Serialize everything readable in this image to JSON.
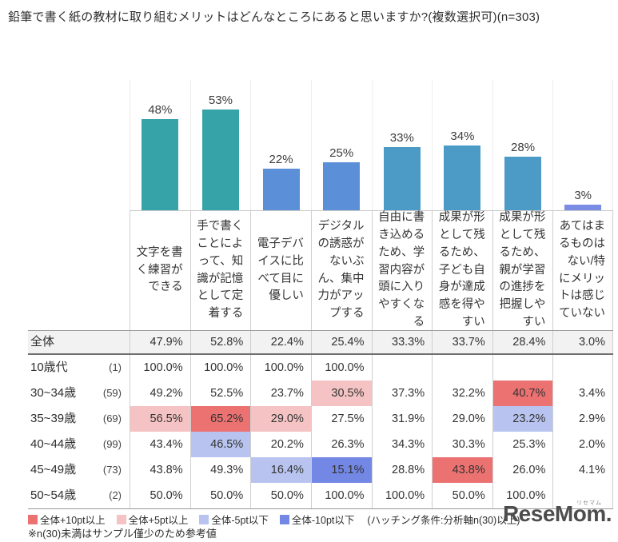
{
  "title": "鉛筆で書く紙の教材に取り組むメリットはどんなところにあると思いますか?(複数選択可)(n=303)",
  "chart_data": {
    "type": "bar",
    "title": "鉛筆で書く紙の教材に取り組むメリットはどんなところにあると思いますか?(複数選択可)(n=303)",
    "categories": [
      "文字を書く練習ができる",
      "手で書くことによって、知識が記憶として定着する",
      "電子デバイスに比べて目に優しい",
      "デジタルの誘惑がないぶん、集中力がアップする",
      "自由に書き込めるため、学習内容が頭に入りやすくなる",
      "成果が形として残るため、子ども自身が達成感を得やすい",
      "成果が形として残るため、親が学習の進捗を把握しやすい",
      "あてはまるものはない/特にメリットは感じていない"
    ],
    "values": [
      48,
      53,
      22,
      25,
      33,
      34,
      28,
      3
    ],
    "unit": "%",
    "ylim": [
      0,
      60
    ],
    "grid": "faint-vertical-column-separators",
    "bar_colors": [
      "#35a3a8",
      "#35a3a8",
      "#5b90d8",
      "#5b90d8",
      "#4c9ac6",
      "#4c9ac6",
      "#4c9ac6",
      "#7b8ce4"
    ],
    "table": {
      "rows": [
        {
          "label": "全体",
          "n": "",
          "total": true,
          "values": [
            "47.9%",
            "52.8%",
            "22.4%",
            "25.4%",
            "33.3%",
            "33.7%",
            "28.4%",
            "3.0%"
          ],
          "hl": [
            null,
            null,
            null,
            null,
            null,
            null,
            null,
            null
          ]
        },
        {
          "label": "10歳代",
          "n": "(1)",
          "total": false,
          "values": [
            "100.0%",
            "100.0%",
            "100.0%",
            "100.0%",
            "",
            "",
            "",
            ""
          ],
          "hl": [
            null,
            null,
            null,
            null,
            null,
            null,
            null,
            null
          ]
        },
        {
          "label": "30~34歳",
          "n": "(59)",
          "total": false,
          "values": [
            "49.2%",
            "52.5%",
            "23.7%",
            "30.5%",
            "37.3%",
            "32.2%",
            "40.7%",
            "3.4%"
          ],
          "hl": [
            null,
            null,
            null,
            "p5",
            null,
            null,
            "p10",
            null
          ]
        },
        {
          "label": "35~39歳",
          "n": "(69)",
          "total": false,
          "values": [
            "56.5%",
            "65.2%",
            "29.0%",
            "27.5%",
            "31.9%",
            "29.0%",
            "23.2%",
            "2.9%"
          ],
          "hl": [
            "p5",
            "p10",
            "p5",
            null,
            null,
            null,
            "m5",
            null
          ]
        },
        {
          "label": "40~44歳",
          "n": "(99)",
          "total": false,
          "values": [
            "43.4%",
            "46.5%",
            "20.2%",
            "26.3%",
            "34.3%",
            "30.3%",
            "25.3%",
            "2.0%"
          ],
          "hl": [
            null,
            "m5",
            null,
            null,
            null,
            null,
            null,
            null
          ]
        },
        {
          "label": "45~49歳",
          "n": "(73)",
          "total": false,
          "values": [
            "43.8%",
            "49.3%",
            "16.4%",
            "15.1%",
            "28.8%",
            "43.8%",
            "26.0%",
            "4.1%"
          ],
          "hl": [
            null,
            null,
            "m5",
            "m10",
            null,
            "p10",
            null,
            null
          ]
        },
        {
          "label": "50~54歳",
          "n": "(2)",
          "total": false,
          "values": [
            "50.0%",
            "50.0%",
            "50.0%",
            "100.0%",
            "100.0%",
            "50.0%",
            "100.0%",
            ""
          ],
          "hl": [
            null,
            null,
            null,
            null,
            null,
            null,
            null,
            null
          ]
        }
      ]
    }
  },
  "legend": {
    "items": [
      {
        "label": "全体+10pt以上",
        "color": "#ec7171"
      },
      {
        "label": "全体+5pt以上",
        "color": "#f5c3c3"
      },
      {
        "label": "全体-5pt以下",
        "color": "#b8c4ef"
      },
      {
        "label": "全体-10pt以下",
        "color": "#7387e5"
      }
    ],
    "hatch_note": "(ハッチング条件:分析軸n(30)以上)"
  },
  "footnote": "※n(30)未満はサンプル僅少のため参考値",
  "logo": {
    "text": "ReseMom.",
    "ruby": "リセマム"
  }
}
